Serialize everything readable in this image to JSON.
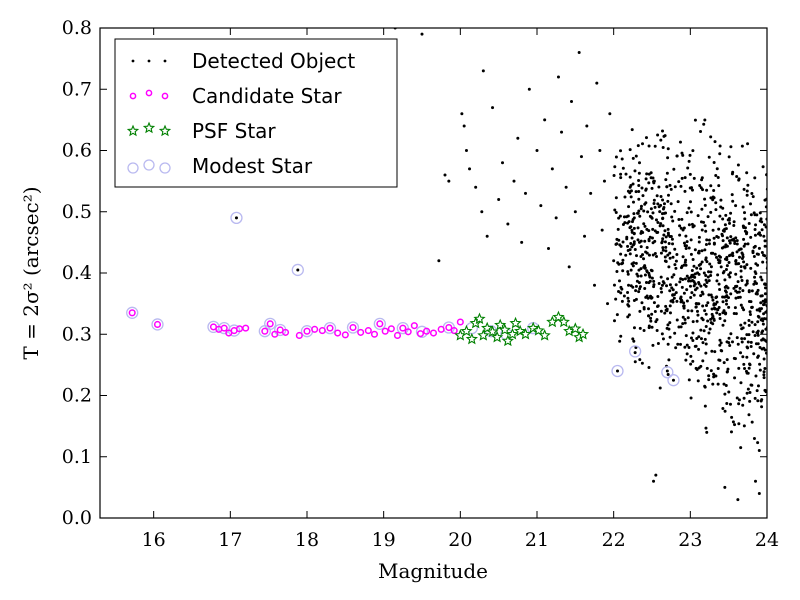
{
  "chart_data": {
    "type": "scatter",
    "xlabel": "Magnitude",
    "ylabel": "T = 2σ² (arcsec²)",
    "xlim": [
      15.3,
      24
    ],
    "ylim": [
      0,
      0.8
    ],
    "xticks": [
      "16",
      "17",
      "18",
      "19",
      "20",
      "21",
      "22",
      "23",
      "24"
    ],
    "yticks": [
      "0.0",
      "0.1",
      "0.2",
      "0.3",
      "0.4",
      "0.5",
      "0.6",
      "0.7",
      "0.8"
    ],
    "grid": false,
    "legend_position": "top-left",
    "legend": [
      {
        "name": "Detected Object",
        "marker": "dot"
      },
      {
        "name": "Candidate Star",
        "marker": "magenta-circle"
      },
      {
        "name": "PSF Star",
        "marker": "green-star"
      },
      {
        "name": "Modest Star",
        "marker": "lavender-ring"
      }
    ],
    "colors": {
      "detected": "#000000",
      "candidate": "#ff00ff",
      "psf": "#008000",
      "modest": "#b9b9f0"
    },
    "series": [
      {
        "name": "Detected Object",
        "points": [
          [
            17.08,
            0.49
          ],
          [
            17.88,
            0.405
          ],
          [
            19.15,
            0.8
          ],
          [
            19.5,
            0.79
          ],
          [
            19.72,
            0.42
          ],
          [
            19.8,
            0.56
          ],
          [
            19.85,
            0.55
          ],
          [
            20.02,
            0.66
          ],
          [
            20.05,
            0.64
          ],
          [
            20.08,
            0.6
          ],
          [
            20.12,
            0.57
          ],
          [
            20.2,
            0.54
          ],
          [
            20.28,
            0.5
          ],
          [
            20.3,
            0.73
          ],
          [
            20.35,
            0.46
          ],
          [
            20.42,
            0.67
          ],
          [
            20.5,
            0.52
          ],
          [
            20.55,
            0.58
          ],
          [
            20.62,
            0.48
          ],
          [
            20.7,
            0.55
          ],
          [
            20.75,
            0.62
          ],
          [
            20.8,
            0.45
          ],
          [
            20.85,
            0.53
          ],
          [
            20.9,
            0.7
          ],
          [
            21.0,
            0.6
          ],
          [
            21.05,
            0.51
          ],
          [
            21.1,
            0.65
          ],
          [
            21.15,
            0.44
          ],
          [
            21.2,
            0.57
          ],
          [
            21.25,
            0.49
          ],
          [
            21.28,
            0.72
          ],
          [
            21.32,
            0.63
          ],
          [
            21.38,
            0.54
          ],
          [
            21.42,
            0.41
          ],
          [
            21.45,
            0.68
          ],
          [
            21.5,
            0.5
          ],
          [
            21.55,
            0.76
          ],
          [
            21.58,
            0.59
          ],
          [
            21.62,
            0.46
          ],
          [
            21.65,
            0.64
          ],
          [
            21.7,
            0.53
          ],
          [
            21.75,
            0.38
          ],
          [
            21.78,
            0.71
          ],
          [
            21.82,
            0.6
          ],
          [
            21.85,
            0.47
          ],
          [
            21.88,
            0.55
          ],
          [
            21.92,
            0.35
          ],
          [
            21.95,
            0.66
          ],
          [
            22.0,
            0.42
          ],
          [
            22.55,
            0.07
          ],
          [
            22.52,
            0.06
          ],
          [
            23.45,
            0.05
          ],
          [
            23.62,
            0.03
          ],
          [
            23.85,
            0.06
          ],
          [
            23.9,
            0.04
          ],
          [
            22.7,
            0.24
          ],
          [
            22.78,
            0.225
          ],
          [
            22.28,
            0.27
          ],
          [
            22.05,
            0.24
          ]
        ]
      },
      {
        "name": "Candidate Star",
        "points": [
          [
            15.72,
            0.335
          ],
          [
            16.05,
            0.316
          ],
          [
            16.78,
            0.312
          ],
          [
            16.85,
            0.308
          ],
          [
            16.92,
            0.31
          ],
          [
            16.98,
            0.302
          ],
          [
            17.05,
            0.306
          ],
          [
            17.12,
            0.309
          ],
          [
            17.2,
            0.31
          ],
          [
            17.45,
            0.305
          ],
          [
            17.52,
            0.317
          ],
          [
            17.58,
            0.3
          ],
          [
            17.65,
            0.307
          ],
          [
            17.72,
            0.303
          ],
          [
            17.9,
            0.298
          ],
          [
            18.0,
            0.305
          ],
          [
            18.1,
            0.308
          ],
          [
            18.2,
            0.306
          ],
          [
            18.3,
            0.31
          ],
          [
            18.4,
            0.302
          ],
          [
            18.5,
            0.299
          ],
          [
            18.6,
            0.311
          ],
          [
            18.7,
            0.303
          ],
          [
            18.8,
            0.306
          ],
          [
            18.88,
            0.3
          ],
          [
            18.95,
            0.317
          ],
          [
            19.02,
            0.305
          ],
          [
            19.1,
            0.309
          ],
          [
            19.18,
            0.298
          ],
          [
            19.25,
            0.31
          ],
          [
            19.32,
            0.304
          ],
          [
            19.4,
            0.314
          ],
          [
            19.48,
            0.301
          ],
          [
            19.56,
            0.305
          ],
          [
            19.65,
            0.302
          ],
          [
            19.75,
            0.308
          ],
          [
            19.85,
            0.311
          ],
          [
            19.92,
            0.306
          ],
          [
            20.0,
            0.32
          ]
        ]
      },
      {
        "name": "PSF Star",
        "points": [
          [
            20.0,
            0.298
          ],
          [
            20.08,
            0.305
          ],
          [
            20.15,
            0.292
          ],
          [
            20.2,
            0.318
          ],
          [
            20.25,
            0.325
          ],
          [
            20.3,
            0.298
          ],
          [
            20.35,
            0.31
          ],
          [
            20.42,
            0.304
          ],
          [
            20.48,
            0.295
          ],
          [
            20.52,
            0.315
          ],
          [
            20.58,
            0.307
          ],
          [
            20.62,
            0.289
          ],
          [
            20.68,
            0.3
          ],
          [
            20.72,
            0.318
          ],
          [
            20.78,
            0.305
          ],
          [
            20.85,
            0.3
          ],
          [
            20.95,
            0.31
          ],
          [
            21.02,
            0.306
          ],
          [
            21.1,
            0.298
          ],
          [
            21.2,
            0.32
          ],
          [
            21.28,
            0.328
          ],
          [
            21.35,
            0.32
          ],
          [
            21.42,
            0.305
          ],
          [
            21.5,
            0.309
          ],
          [
            21.55,
            0.295
          ],
          [
            21.6,
            0.3
          ]
        ]
      },
      {
        "name": "Modest Star",
        "points": [
          [
            15.72,
            0.335
          ],
          [
            16.05,
            0.316
          ],
          [
            16.78,
            0.312
          ],
          [
            16.92,
            0.31
          ],
          [
            17.05,
            0.306
          ],
          [
            17.08,
            0.49
          ],
          [
            17.45,
            0.305
          ],
          [
            17.52,
            0.317
          ],
          [
            17.65,
            0.307
          ],
          [
            17.88,
            0.405
          ],
          [
            18.0,
            0.305
          ],
          [
            18.3,
            0.31
          ],
          [
            18.6,
            0.311
          ],
          [
            18.95,
            0.317
          ],
          [
            19.25,
            0.31
          ],
          [
            19.5,
            0.304
          ],
          [
            19.85,
            0.311
          ],
          [
            20.15,
            0.31
          ],
          [
            20.4,
            0.305
          ],
          [
            20.6,
            0.3
          ],
          [
            20.95,
            0.31
          ],
          [
            22.05,
            0.24
          ],
          [
            22.28,
            0.272
          ],
          [
            22.7,
            0.238
          ],
          [
            22.78,
            0.225
          ]
        ]
      }
    ]
  }
}
